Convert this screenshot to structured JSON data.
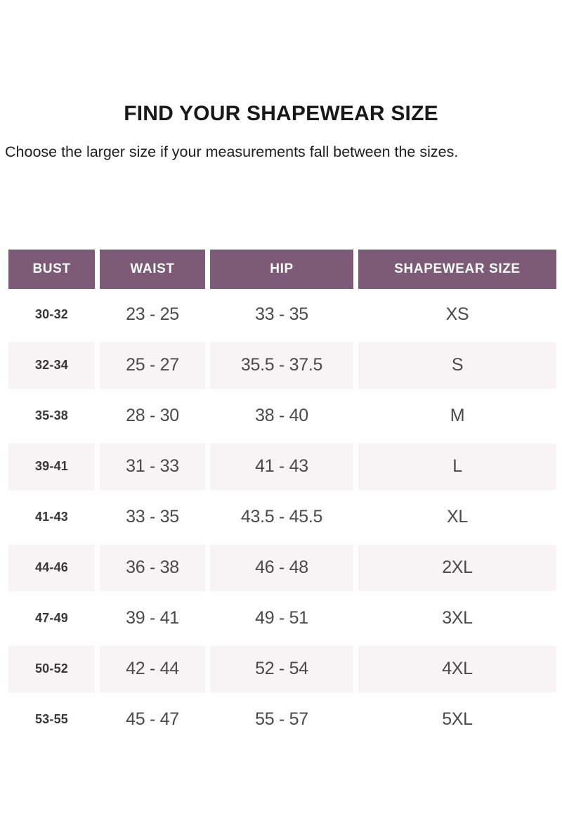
{
  "page": {
    "title": "FIND YOUR SHAPEWEAR SIZE",
    "subtitle": "Choose the larger size if your measurements fall between the sizes."
  },
  "colors": {
    "header_bg": "#7d5a75",
    "header_text": "#ffffff",
    "row_alt_bg": "#f8f4f6",
    "cell_text": "#4a4a4a"
  },
  "chart_data": {
    "type": "table",
    "title": "FIND YOUR SHAPEWEAR SIZE",
    "columns": [
      "BUST",
      "WAIST",
      "HIP",
      "SHAPEWEAR SIZE"
    ],
    "rows": [
      [
        "30-32",
        "23 - 25",
        "33 - 35",
        "XS"
      ],
      [
        "32-34",
        "25 - 27",
        "35.5 - 37.5",
        "S"
      ],
      [
        "35-38",
        "28 - 30",
        "38 - 40",
        "M"
      ],
      [
        "39-41",
        "31 - 33",
        "41 - 43",
        "L"
      ],
      [
        "41-43",
        "33 - 35",
        "43.5 - 45.5",
        "XL"
      ],
      [
        "44-46",
        "36 - 38",
        "46 - 48",
        "2XL"
      ],
      [
        "47-49",
        "39 - 41",
        "49 - 51",
        "3XL"
      ],
      [
        "50-52",
        "42 - 44",
        "52 - 54",
        "4XL"
      ],
      [
        "53-55",
        "45 - 47",
        "55 - 57",
        "5XL"
      ]
    ]
  }
}
